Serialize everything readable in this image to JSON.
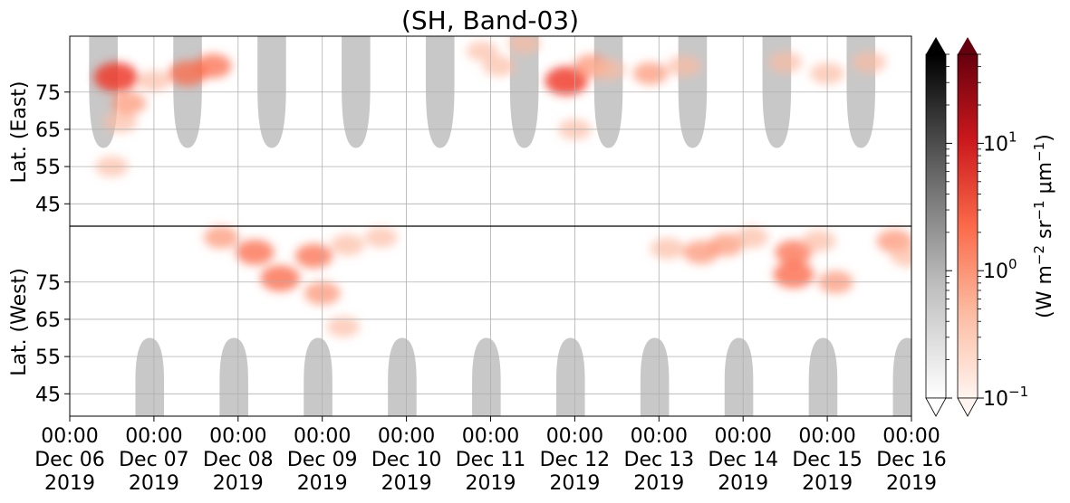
{
  "chart_data": {
    "type": "heatmap",
    "title": "(SH, Band-03)",
    "xlabel": "",
    "x_ticks": [
      {
        "line1": "00:00",
        "line2": "Dec 06",
        "line3": "2019"
      },
      {
        "line1": "00:00",
        "line2": "Dec 07",
        "line3": "2019"
      },
      {
        "line1": "00:00",
        "line2": "Dec 08",
        "line3": "2019"
      },
      {
        "line1": "00:00",
        "line2": "Dec 09",
        "line3": "2019"
      },
      {
        "line1": "00:00",
        "line2": "Dec 10",
        "line3": "2019"
      },
      {
        "line1": "00:00",
        "line2": "Dec 11",
        "line3": "2019"
      },
      {
        "line1": "00:00",
        "line2": "Dec 12",
        "line3": "2019"
      },
      {
        "line1": "00:00",
        "line2": "Dec 13",
        "line3": "2019"
      },
      {
        "line1": "00:00",
        "line2": "Dec 14",
        "line3": "2019"
      },
      {
        "line1": "00:00",
        "line2": "Dec 15",
        "line3": "2019"
      },
      {
        "line1": "00:00",
        "line2": "Dec 16",
        "line3": "2019"
      }
    ],
    "xlim": [
      "2019-12-06 00:00",
      "2019-12-16 00:00"
    ],
    "panels": [
      {
        "name": "east",
        "ylabel": "Lat. (East)",
        "ylim": [
          39,
          90
        ],
        "y_ticks": [
          45,
          55,
          65,
          75
        ]
      },
      {
        "name": "west",
        "ylabel": "Lat. (West)",
        "ylim": [
          90,
          39
        ],
        "y_ticks": [
          75,
          65,
          55,
          45
        ]
      }
    ],
    "grid": true,
    "gray_regions": {
      "description_color": "#c8c8c8",
      "east_centers_day": [
        0.4,
        1.4,
        2.4,
        3.4,
        4.4,
        5.4,
        6.4,
        7.4,
        8.4,
        9.4
      ],
      "west_centers_day": [
        0.95,
        1.95,
        2.95,
        3.95,
        4.95,
        5.95,
        6.95,
        7.95,
        8.95,
        9.95
      ],
      "half_width_day": 0.17,
      "reach_lat": 60
    },
    "emission_patches": [
      {
        "day": 0.55,
        "lat_e": 79,
        "lat_w": null,
        "intensity": 0.85
      },
      {
        "day": 0.5,
        "lat_e": 55,
        "lat_w": null,
        "intensity": 0.35
      },
      {
        "day": 0.6,
        "lat_e": 67,
        "lat_w": null,
        "intensity": 0.4
      },
      {
        "day": 0.7,
        "lat_e": 72,
        "lat_w": null,
        "intensity": 0.45
      },
      {
        "day": 1.0,
        "lat_e": 78,
        "lat_w": null,
        "intensity": 0.35
      },
      {
        "day": 1.4,
        "lat_e": 80,
        "lat_w": null,
        "intensity": 0.6
      },
      {
        "day": 1.7,
        "lat_e": 82,
        "lat_w": null,
        "intensity": 0.55
      },
      {
        "day": 1.8,
        "lat_e": null,
        "lat_w": 87,
        "intensity": 0.45
      },
      {
        "day": 2.2,
        "lat_e": null,
        "lat_w": 83,
        "intensity": 0.6
      },
      {
        "day": 2.5,
        "lat_e": null,
        "lat_w": 76,
        "intensity": 0.65
      },
      {
        "day": 2.9,
        "lat_e": null,
        "lat_w": 82,
        "intensity": 0.55
      },
      {
        "day": 3.0,
        "lat_e": null,
        "lat_w": 72,
        "intensity": 0.5
      },
      {
        "day": 3.3,
        "lat_e": null,
        "lat_w": 85,
        "intensity": 0.4
      },
      {
        "day": 3.25,
        "lat_e": null,
        "lat_w": 63,
        "intensity": 0.35
      },
      {
        "day": 3.7,
        "lat_e": null,
        "lat_w": 87,
        "intensity": 0.35
      },
      {
        "day": 4.9,
        "lat_e": 86,
        "lat_w": null,
        "intensity": 0.3
      },
      {
        "day": 5.1,
        "lat_e": 82,
        "lat_w": null,
        "intensity": 0.35
      },
      {
        "day": 5.4,
        "lat_e": 88,
        "lat_w": null,
        "intensity": 0.35
      },
      {
        "day": 5.9,
        "lat_e": 78,
        "lat_w": null,
        "intensity": 0.8
      },
      {
        "day": 6.2,
        "lat_e": 82,
        "lat_w": null,
        "intensity": 0.5
      },
      {
        "day": 6.0,
        "lat_e": 65,
        "lat_w": null,
        "intensity": 0.35
      },
      {
        "day": 6.4,
        "lat_e": 81,
        "lat_w": null,
        "intensity": 0.4
      },
      {
        "day": 6.9,
        "lat_e": 80,
        "lat_w": null,
        "intensity": 0.45
      },
      {
        "day": 7.1,
        "lat_e": null,
        "lat_w": 84,
        "intensity": 0.4
      },
      {
        "day": 7.3,
        "lat_e": 82,
        "lat_w": null,
        "intensity": 0.4
      },
      {
        "day": 7.5,
        "lat_e": null,
        "lat_w": 83,
        "intensity": 0.5
      },
      {
        "day": 7.8,
        "lat_e": null,
        "lat_w": 85,
        "intensity": 0.45
      },
      {
        "day": 8.1,
        "lat_e": null,
        "lat_w": 87,
        "intensity": 0.4
      },
      {
        "day": 8.5,
        "lat_e": 83,
        "lat_w": null,
        "intensity": 0.4
      },
      {
        "day": 8.6,
        "lat_e": null,
        "lat_w": 83,
        "intensity": 0.55
      },
      {
        "day": 8.6,
        "lat_e": null,
        "lat_w": 77,
        "intensity": 0.7
      },
      {
        "day": 8.9,
        "lat_e": null,
        "lat_w": 86,
        "intensity": 0.4
      },
      {
        "day": 9.1,
        "lat_e": null,
        "lat_w": 75,
        "intensity": 0.45
      },
      {
        "day": 9.0,
        "lat_e": 80,
        "lat_w": null,
        "intensity": 0.4
      },
      {
        "day": 9.5,
        "lat_e": 83,
        "lat_w": null,
        "intensity": 0.4
      },
      {
        "day": 9.8,
        "lat_e": null,
        "lat_w": 86,
        "intensity": 0.5
      },
      {
        "day": 9.95,
        "lat_e": null,
        "lat_w": 82,
        "intensity": 0.4
      }
    ],
    "colorbars": [
      {
        "name": "gray",
        "colors": [
          "#ffffff",
          "#bdbdbd",
          "#636363",
          "#000000"
        ],
        "extend": "both"
      },
      {
        "name": "reds",
        "colors": [
          "#fff5f0",
          "#fcbba1",
          "#fb6a4a",
          "#cb181d",
          "#67000d"
        ],
        "extend": "both",
        "scale": "log",
        "range": [
          0.1,
          50
        ],
        "ticks": [
          {
            "base": "10",
            "exp": "1",
            "value": 10
          },
          {
            "base": "10",
            "exp": "0",
            "value": 1
          },
          {
            "base": "10",
            "exp": "−1",
            "value": 0.1
          }
        ]
      }
    ],
    "colorbar_label": {
      "prefix": "(W m",
      "sup1": "−2",
      "mid1": " sr",
      "sup2": "−1",
      "mid2": " μm",
      "sup3": "−1",
      "suffix": ")"
    }
  }
}
